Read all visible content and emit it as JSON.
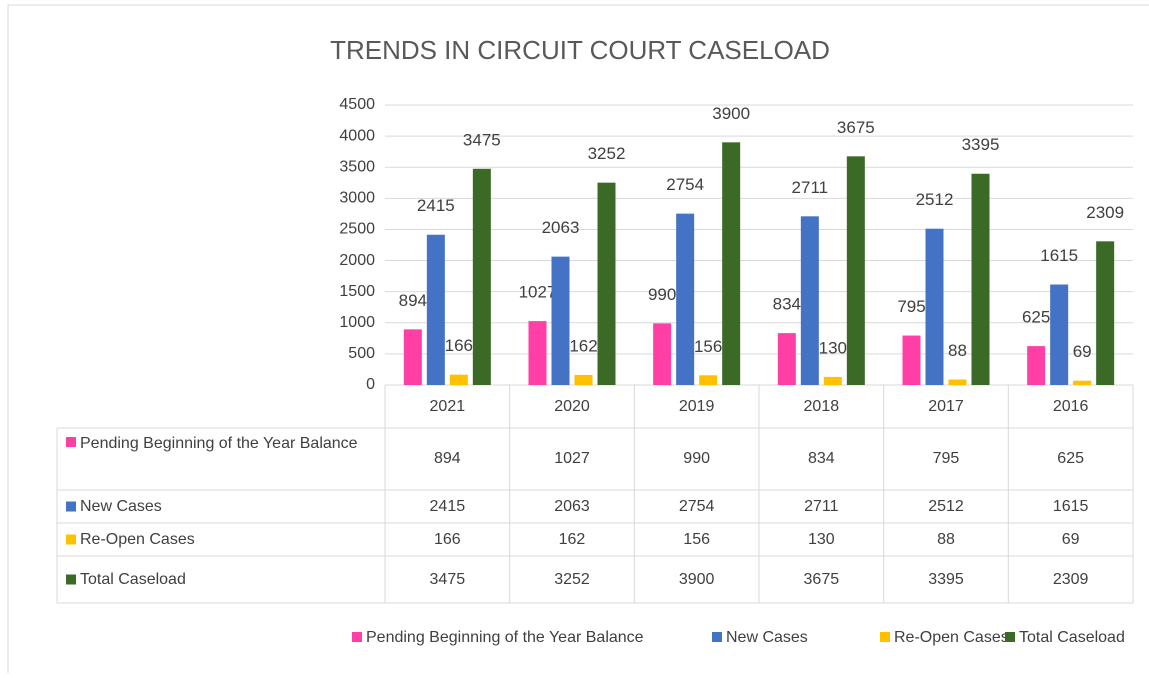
{
  "chart_data": {
    "type": "bar",
    "title": "TRENDS IN CIRCUIT COURT CASELOAD",
    "categories": [
      "2021",
      "2020",
      "2019",
      "2018",
      "2017",
      "2016"
    ],
    "series": [
      {
        "name": "Pending Beginning of the Year Balance",
        "color": "#ff3fa5",
        "values": [
          894,
          1027,
          990,
          834,
          795,
          625
        ]
      },
      {
        "name": "New Cases",
        "color": "#4472c4",
        "values": [
          2415,
          2063,
          2754,
          2711,
          2512,
          1615
        ]
      },
      {
        "name": "Re-Open Cases",
        "color": "#ffc000",
        "values": [
          166,
          162,
          156,
          130,
          88,
          69
        ]
      },
      {
        "name": "Total Caseload",
        "color": "#3b6a27",
        "values": [
          3475,
          3252,
          3900,
          3675,
          3395,
          2309
        ]
      }
    ],
    "ylim": [
      0,
      4500
    ],
    "yticks": [
      0,
      500,
      1000,
      1500,
      2000,
      2500,
      3000,
      3500,
      4000,
      4500
    ],
    "grid": true,
    "legend": "bottom"
  }
}
